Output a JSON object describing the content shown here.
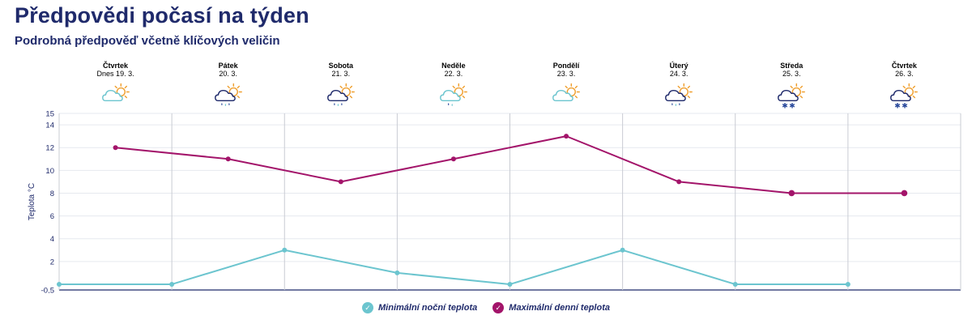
{
  "header": {
    "title": "Předpovědi počasí na týden",
    "subtitle": "Podrobná předpověď včetně klíčových veličin"
  },
  "days": [
    {
      "name": "Čtvrtek",
      "date": "Dnes 19. 3.",
      "icon": "partly-cloudy-sun-icon"
    },
    {
      "name": "Pátek",
      "date": "20. 3.",
      "icon": "cloud-rain-sun-icon"
    },
    {
      "name": "Sobota",
      "date": "21. 3.",
      "icon": "cloud-rain-sun-icon"
    },
    {
      "name": "Neděle",
      "date": "22. 3.",
      "icon": "light-cloud-rain-sun-icon"
    },
    {
      "name": "Pondělí",
      "date": "23. 3.",
      "icon": "partly-cloudy-sun-icon"
    },
    {
      "name": "Úterý",
      "date": "24. 3.",
      "icon": "cloud-rain-sun-icon"
    },
    {
      "name": "Středa",
      "date": "25. 3.",
      "icon": "cloud-snow-sun-icon"
    },
    {
      "name": "Čtvrtek",
      "date": "26. 3.",
      "icon": "cloud-snow-sun-icon"
    }
  ],
  "chart_data": {
    "type": "line",
    "ylabel": "Teplota °C",
    "ylim": [
      -0.5,
      15
    ],
    "yticks": [
      -0.5,
      2,
      4,
      6,
      8,
      10,
      12,
      14,
      15
    ],
    "ytick_labels": [
      "-0,5",
      "2",
      "4",
      "6",
      "8",
      "10",
      "12",
      "14",
      "15"
    ],
    "series": [
      {
        "name": "Minimální noční teplota",
        "color": "#6cc5cf",
        "x": [
          0,
          1,
          2,
          3,
          4,
          5,
          6,
          7
        ],
        "values": [
          0,
          0,
          3,
          1,
          0,
          3,
          0,
          0
        ]
      },
      {
        "name": "Maximální denní teplota",
        "color": "#a3146a",
        "x": [
          0.5,
          1.5,
          2.5,
          3.5,
          4.5,
          5.5,
          6.5,
          7.5
        ],
        "values": [
          12,
          11,
          9,
          11,
          13,
          9,
          8,
          8
        ]
      }
    ]
  },
  "legend": {
    "min_label": "Minimální noční teplota",
    "max_label": "Maximální denní teplota",
    "min_color": "#6cc5cf",
    "max_color": "#a3146a",
    "check": "✓"
  }
}
